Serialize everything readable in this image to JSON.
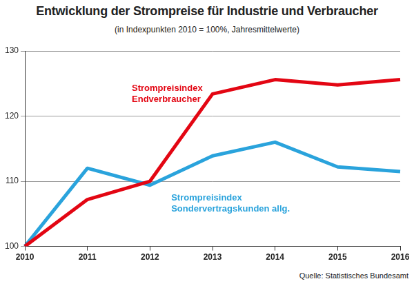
{
  "chart_data": {
    "type": "line",
    "title": "Entwicklung der Strompreise für Industrie und Verbraucher",
    "subtitle": "(in Indexpunkten 2010 = 100%, Jahresmittelwerte)",
    "source": "Quelle: Statistisches Bundesamt",
    "categories": [
      "2010",
      "2011",
      "2012",
      "2013",
      "2014",
      "2015",
      "2016"
    ],
    "series": [
      {
        "name": "Strompreisindex Endverbraucher",
        "color": "#e30613",
        "values": [
          100,
          107.2,
          110,
          123.4,
          125.6,
          124.8,
          125.6
        ]
      },
      {
        "name": "Strompreisindex Sondervertragskunden allg.",
        "color": "#2aa3dc",
        "values": [
          100,
          112,
          109.4,
          113.9,
          116,
          112.2,
          111.5
        ]
      }
    ],
    "ylim": [
      100,
      130
    ],
    "yticks": [
      100,
      110,
      120,
      130
    ],
    "grid": true
  }
}
